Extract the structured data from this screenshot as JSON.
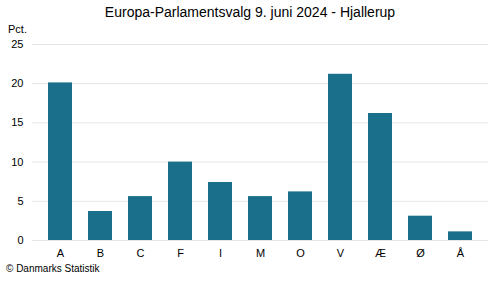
{
  "chart_data": {
    "type": "bar",
    "title": "Europa-Parlamentsvalg 9. juni 2024 - Hjallerup",
    "ylabel": "Pct.",
    "caption": "© Danmarks Statistik",
    "categories": [
      "A",
      "B",
      "C",
      "F",
      "I",
      "M",
      "O",
      "V",
      "Æ",
      "Ø",
      "Å"
    ],
    "values": [
      20.1,
      3.7,
      5.6,
      10.0,
      7.4,
      5.6,
      6.2,
      21.2,
      16.2,
      3.1,
      1.1
    ],
    "color": "#1a6f8a",
    "ylim": [
      0,
      25
    ],
    "yticks": [
      0,
      5,
      10,
      15,
      20,
      25
    ],
    "grid": true
  }
}
